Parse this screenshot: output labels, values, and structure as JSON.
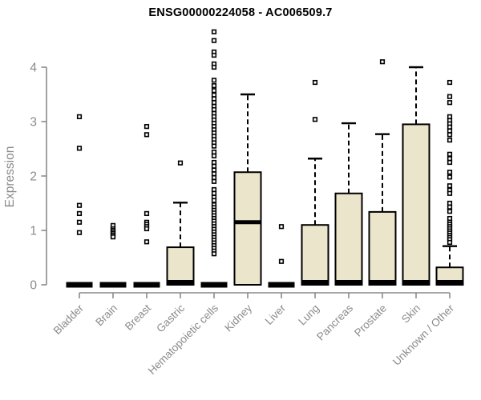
{
  "window": {
    "background": "#ffffff"
  },
  "colors": {
    "box_fill": "#EBE5CB",
    "box_border": "#000000",
    "median": "#000000",
    "whisker": "#000000",
    "outlier_stroke": "#000000",
    "outlier_fill": "#ffffff",
    "axis": "#8a8a8a",
    "tick_label": "#8a8a8a",
    "title": "#000000",
    "background": "#ffffff"
  },
  "chart_data": {
    "type": "boxplot",
    "title": "ENSG00000224058 - AC006509.7",
    "xlabel": "",
    "ylabel": "Expression",
    "ylim": [
      0,
      4.8
    ],
    "yticks": [
      0,
      1,
      2,
      3,
      4
    ],
    "grid": false,
    "legend": null,
    "x_tick_rotation": -45,
    "categories": [
      "Bladder",
      "Brain",
      "Breast",
      "Gastric",
      "Hematopoietic cells",
      "Kidney",
      "Liver",
      "Lung",
      "Pancreas",
      "Prostate",
      "Skin",
      "Unknown / Other"
    ],
    "series": [
      {
        "name": "Bladder",
        "low": 0,
        "q1": 0,
        "median": 0,
        "q3": 0,
        "high": 0,
        "outliers": [
          3.09,
          2.51,
          1.46,
          1.31,
          1.15,
          0.96
        ]
      },
      {
        "name": "Brain",
        "low": 0,
        "q1": 0,
        "median": 0,
        "q3": 0,
        "high": 0,
        "outliers": [
          1.09,
          1.03,
          1.0,
          0.97,
          0.94,
          0.91,
          0.88
        ]
      },
      {
        "name": "Breast",
        "low": 0,
        "q1": 0,
        "median": 0,
        "q3": 0,
        "high": 0,
        "outliers": [
          2.91,
          2.76,
          1.31,
          1.15,
          1.11,
          1.07,
          1.03,
          0.79
        ]
      },
      {
        "name": "Gastric",
        "low": 0,
        "q1": 0,
        "median": 0.02,
        "q3": 0.69,
        "high": 1.51,
        "outliers": [
          2.24
        ]
      },
      {
        "name": "Hematopoietic cells",
        "low": 0,
        "q1": 0,
        "median": 0,
        "q3": 0,
        "high": 0,
        "outliers": [
          4.65,
          4.49,
          4.28,
          4.22,
          4.06,
          4.0,
          3.76,
          3.66,
          3.57,
          3.49,
          3.42,
          3.35,
          3.28,
          3.22,
          3.15,
          3.09,
          3.03,
          2.97,
          2.91,
          2.85,
          2.79,
          2.73,
          2.67,
          2.61,
          2.55,
          2.44,
          2.37,
          2.25,
          2.18,
          2.11,
          2.04,
          1.97,
          1.9,
          1.75,
          1.68,
          1.61,
          1.55,
          1.47,
          1.42,
          1.37,
          1.32,
          1.27,
          1.22,
          1.17,
          1.12,
          1.07,
          1.02,
          0.97,
          0.92,
          0.87,
          0.82,
          0.77,
          0.72,
          0.67,
          0.62,
          0.57
        ]
      },
      {
        "name": "Kidney",
        "low": 0,
        "q1": 0,
        "median": 1.15,
        "q3": 2.07,
        "high": 3.5,
        "outliers": []
      },
      {
        "name": "Liver",
        "low": 0,
        "q1": 0,
        "median": 0,
        "q3": 0,
        "high": 0,
        "outliers": [
          1.07,
          0.43
        ]
      },
      {
        "name": "Lung",
        "low": 0,
        "q1": 0,
        "median": 0.02,
        "q3": 1.1,
        "high": 2.32,
        "outliers": [
          3.72,
          3.04
        ]
      },
      {
        "name": "Pancreas",
        "low": 0,
        "q1": 0,
        "median": 0.02,
        "q3": 1.68,
        "high": 2.97,
        "outliers": []
      },
      {
        "name": "Prostate",
        "low": 0,
        "q1": 0,
        "median": 0.02,
        "q3": 1.34,
        "high": 2.77,
        "outliers": [
          4.1
        ]
      },
      {
        "name": "Skin",
        "low": 0,
        "q1": 0,
        "median": 0.02,
        "q3": 2.95,
        "high": 4.0,
        "outliers": []
      },
      {
        "name": "Unknown / Other",
        "low": 0,
        "q1": 0,
        "median": 0.02,
        "q3": 0.32,
        "high": 0.71,
        "outliers": [
          3.72,
          3.46,
          3.35,
          3.09,
          3.02,
          2.96,
          2.9,
          2.83,
          2.76,
          2.66,
          2.4,
          2.32,
          2.25,
          2.07,
          1.98,
          1.82,
          1.74,
          1.68,
          1.5,
          1.43,
          1.35,
          1.22,
          1.15,
          1.11,
          1.07,
          1.03,
          0.99,
          0.95,
          0.91,
          0.87,
          0.83,
          0.78
        ]
      }
    ]
  }
}
